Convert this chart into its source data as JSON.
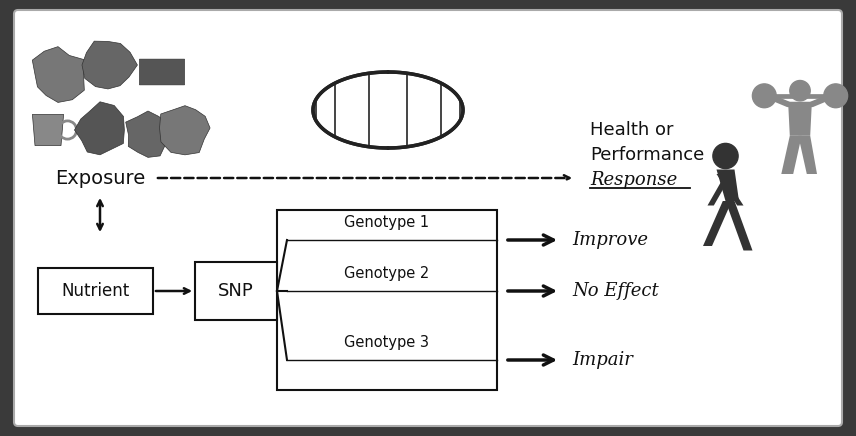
{
  "bg_color": "#3a3a3a",
  "inner_bg": "#ffffff",
  "border_color": "#aaaaaa",
  "arrow_color": "#111111",
  "box_color": "#111111",
  "text_color": "#111111",
  "gray1": "#555555",
  "gray2": "#777777",
  "gray3": "#999999",
  "exposure_label": "Exposure",
  "nutrient_label": "Nutrient",
  "snp_label": "SNP",
  "genotypes": [
    "Genotype 1",
    "Genotype 2",
    "Genotype 3"
  ],
  "outcomes": [
    "Improve",
    "No Effect",
    "Impair"
  ],
  "health_line1": "Health or",
  "health_line2": "Performance",
  "health_line3": "Response"
}
